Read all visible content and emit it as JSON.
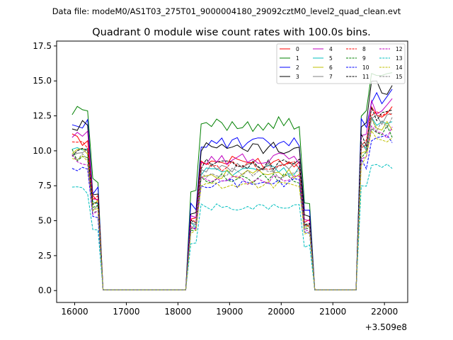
{
  "chart_data": {
    "type": "line",
    "suptitle": "Data file: modeM0/AS1T03_275T01_9000004180_29092cztM0_level2_quad_clean.evt",
    "title": "Quadrant 0 module wise count rates with 100.0s bins.",
    "xlabel": "",
    "ylabel": "",
    "x_offset_label": "+3.509e8",
    "xlim": [
      15650,
      22450
    ],
    "ylim": [
      -0.85,
      17.85
    ],
    "xticks": [
      16000,
      17000,
      18000,
      19000,
      20000,
      21000,
      22000
    ],
    "xtick_labels": [
      "16000",
      "17000",
      "18000",
      "19000",
      "20000",
      "21000",
      "22000"
    ],
    "yticks": [
      0,
      2.5,
      5,
      7.5,
      10,
      12.5,
      15,
      17.5
    ],
    "ytick_labels": [
      "0.0",
      "2.5",
      "5.0",
      "7.5",
      "10.0",
      "12.5",
      "15.0",
      "17.5"
    ],
    "legend_position": "top-right",
    "x_groups": [
      [
        15950,
        16050,
        16150,
        16250
      ],
      [
        16350,
        16450
      ],
      [
        16550,
        16650,
        16750,
        16850,
        16950,
        17050,
        17150,
        17250,
        17350,
        17450,
        17550,
        17650,
        17750,
        17850,
        17950,
        18050,
        18150
      ],
      [
        18250,
        18350
      ],
      [
        18450,
        18550,
        18650,
        18750,
        18850,
        18950,
        19050,
        19150,
        19250,
        19350,
        19450,
        19550,
        19650,
        19750,
        19850,
        19950,
        20050,
        20150,
        20250,
        20350
      ],
      [
        20450,
        20550
      ],
      [
        20650,
        20750,
        20850,
        20950,
        21050,
        21150,
        21250,
        21350,
        21450
      ],
      [
        21550,
        21650
      ],
      [
        21750,
        21850,
        21950,
        22050,
        22150
      ]
    ],
    "series": [
      {
        "name": "0",
        "color": "#ff0000",
        "dash": false,
        "levels": [
          10.8,
          6.6,
          0.05,
          5.2,
          9.2,
          5.0,
          0.05,
          10.5,
          12.8
        ]
      },
      {
        "name": "1",
        "color": "#008000",
        "dash": false,
        "levels": [
          13.1,
          8.0,
          0.05,
          6.9,
          11.9,
          6.4,
          0.05,
          12.9,
          15.4
        ]
      },
      {
        "name": "2",
        "color": "#0000ff",
        "dash": false,
        "levels": [
          11.8,
          7.2,
          0.05,
          6.0,
          10.5,
          5.6,
          0.05,
          11.8,
          14.0
        ]
      },
      {
        "name": "3",
        "color": "#000000",
        "dash": false,
        "levels": [
          11.7,
          7.1,
          0.05,
          5.6,
          10.2,
          5.4,
          0.05,
          12.2,
          14.6
        ]
      },
      {
        "name": "4",
        "color": "#bf00bf",
        "dash": false,
        "levels": [
          11.0,
          6.7,
          0.05,
          5.4,
          9.4,
          5.1,
          0.05,
          11.0,
          13.2
        ]
      },
      {
        "name": "5",
        "color": "#00bfbf",
        "dash": false,
        "levels": [
          10.0,
          6.1,
          0.05,
          4.7,
          8.6,
          4.6,
          0.05,
          10.2,
          12.0
        ]
      },
      {
        "name": "6",
        "color": "#bfbf00",
        "dash": false,
        "levels": [
          10.1,
          6.2,
          0.05,
          4.6,
          8.3,
          4.5,
          0.05,
          10.0,
          11.8
        ]
      },
      {
        "name": "7",
        "color": "#808080",
        "dash": false,
        "levels": [
          9.8,
          6.0,
          0.05,
          4.8,
          8.8,
          4.7,
          0.05,
          10.4,
          12.3
        ]
      },
      {
        "name": "8",
        "color": "#ff0000",
        "dash": true,
        "levels": [
          10.6,
          6.5,
          0.05,
          5.1,
          8.9,
          4.8,
          0.05,
          10.6,
          12.5
        ]
      },
      {
        "name": "9",
        "color": "#008000",
        "dash": true,
        "levels": [
          9.7,
          5.9,
          0.05,
          4.5,
          8.0,
          4.3,
          0.05,
          9.6,
          11.4
        ]
      },
      {
        "name": "10",
        "color": "#0000ff",
        "dash": true,
        "levels": [
          8.5,
          5.2,
          0.05,
          4.3,
          7.7,
          4.1,
          0.05,
          9.1,
          10.9
        ]
      },
      {
        "name": "11",
        "color": "#000000",
        "dash": true,
        "levels": [
          9.9,
          6.1,
          0.05,
          5.0,
          9.0,
          4.9,
          0.05,
          10.8,
          12.6
        ]
      },
      {
        "name": "12",
        "color": "#bf00bf",
        "dash": true,
        "levels": [
          9.3,
          5.7,
          0.05,
          4.4,
          7.9,
          4.2,
          0.05,
          9.4,
          11.3
        ]
      },
      {
        "name": "13",
        "color": "#00bfbf",
        "dash": true,
        "levels": [
          7.2,
          4.4,
          0.05,
          3.3,
          6.0,
          3.2,
          0.05,
          7.3,
          8.8
        ]
      },
      {
        "name": "14",
        "color": "#bfbf00",
        "dash": true,
        "levels": [
          9.5,
          5.8,
          0.05,
          4.2,
          7.6,
          4.0,
          0.05,
          9.3,
          11.0
        ]
      },
      {
        "name": "15",
        "color": "#808080",
        "dash": true,
        "levels": [
          9.4,
          5.7,
          0.05,
          4.6,
          8.4,
          4.5,
          0.05,
          10.1,
          11.9
        ]
      }
    ]
  }
}
